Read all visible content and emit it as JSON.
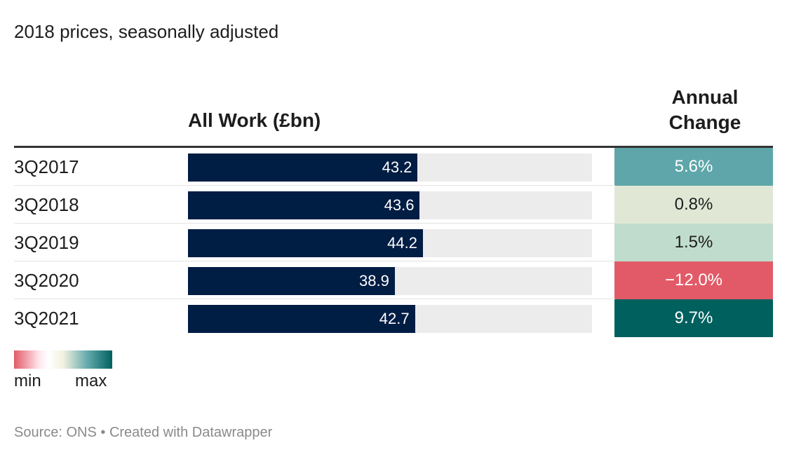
{
  "subtitle": "2018 prices, seasonally adjusted",
  "headers": {
    "all_work": "All Work (£bn)",
    "annual_change_line1": "Annual",
    "annual_change_line2": "Change"
  },
  "chart_data": {
    "type": "table",
    "columns": [
      "",
      "All Work (£bn)",
      "Annual Change"
    ],
    "bar_max": 76,
    "rows": [
      {
        "period": "3Q2017",
        "all_work": 43.2,
        "all_work_label": "43.2",
        "annual_change": 5.6,
        "annual_change_label": "5.6%",
        "cell_color": "#5ea6a9",
        "text_color": "#ffffff"
      },
      {
        "period": "3Q2018",
        "all_work": 43.6,
        "all_work_label": "43.6",
        "annual_change": 0.8,
        "annual_change_label": "0.8%",
        "cell_color": "#e0e8d5",
        "text_color": "#1d1d1d"
      },
      {
        "period": "3Q2019",
        "all_work": 44.2,
        "all_work_label": "44.2",
        "annual_change": 1.5,
        "annual_change_label": "1.5%",
        "cell_color": "#c0dccd",
        "text_color": "#1d1d1d"
      },
      {
        "period": "3Q2020",
        "all_work": 38.9,
        "all_work_label": "38.9",
        "annual_change": -12.0,
        "annual_change_label": "−12.0%",
        "cell_color": "#e25a67",
        "text_color": "#ffffff"
      },
      {
        "period": "3Q2021",
        "all_work": 42.7,
        "all_work_label": "42.7",
        "annual_change": 9.7,
        "annual_change_label": "9.7%",
        "cell_color": "#00605e",
        "text_color": "#ffffff"
      }
    ]
  },
  "legend": {
    "min_label": "min",
    "max_label": "max"
  },
  "footer": {
    "source": "Source: ONS • Created with Datawrapper"
  }
}
